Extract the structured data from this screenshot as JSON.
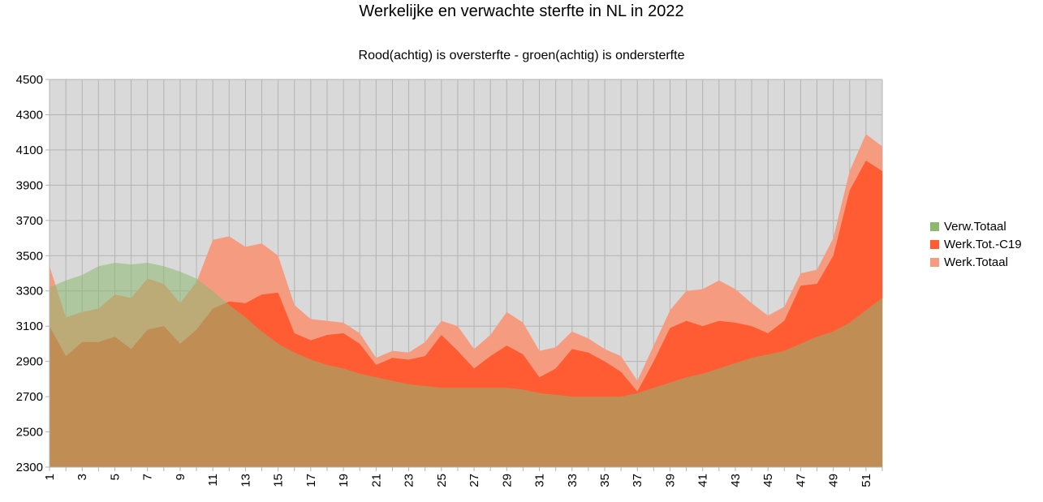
{
  "chart_data": {
    "type": "area",
    "title": "Werkelijke en verwachte sterfte in NL in 2022",
    "subtitle": "Rood(achtig) is oversterfte - groen(achtig) is ondersterfte",
    "xlabel": "",
    "ylabel": "",
    "ylim": [
      2300,
      4500
    ],
    "yticks": [
      2300,
      2500,
      2700,
      2900,
      3100,
      3300,
      3500,
      3700,
      3900,
      4100,
      4300,
      4500
    ],
    "x": [
      1,
      2,
      3,
      4,
      5,
      6,
      7,
      8,
      9,
      10,
      11,
      12,
      13,
      14,
      15,
      16,
      17,
      18,
      19,
      20,
      21,
      22,
      23,
      24,
      25,
      26,
      27,
      28,
      29,
      30,
      31,
      32,
      33,
      34,
      35,
      36,
      37,
      38,
      39,
      40,
      41,
      42,
      43,
      44,
      45,
      46,
      47,
      48,
      49,
      50,
      51,
      52
    ],
    "xticks": [
      1,
      3,
      5,
      7,
      9,
      11,
      13,
      15,
      17,
      19,
      21,
      23,
      25,
      27,
      29,
      31,
      33,
      35,
      37,
      39,
      41,
      43,
      45,
      47,
      49,
      51
    ],
    "grid": true,
    "legend_position": "right",
    "series": [
      {
        "name": "Verw.Totaal",
        "color": "#8db870",
        "values": [
          3320,
          3360,
          3390,
          3440,
          3460,
          3450,
          3460,
          3440,
          3410,
          3370,
          3300,
          3220,
          3150,
          3070,
          3000,
          2950,
          2910,
          2880,
          2860,
          2830,
          2810,
          2790,
          2770,
          2760,
          2750,
          2750,
          2750,
          2750,
          2750,
          2740,
          2720,
          2710,
          2700,
          2700,
          2700,
          2700,
          2720,
          2750,
          2780,
          2810,
          2830,
          2860,
          2890,
          2920,
          2940,
          2960,
          3000,
          3040,
          3070,
          3120,
          3190,
          3260
        ]
      },
      {
        "name": "Werk.Tot.-C19",
        "color": "#ff5c33",
        "values": [
          3100,
          2930,
          3010,
          3010,
          3040,
          2970,
          3080,
          3100,
          3000,
          3080,
          3200,
          3240,
          3230,
          3280,
          3290,
          3060,
          3020,
          3050,
          3060,
          3000,
          2880,
          2920,
          2910,
          2930,
          3050,
          2960,
          2860,
          2930,
          2990,
          2940,
          2810,
          2860,
          2970,
          2950,
          2900,
          2840,
          2730,
          2900,
          3090,
          3130,
          3100,
          3130,
          3120,
          3100,
          3060,
          3130,
          3330,
          3340,
          3500,
          3870,
          4040,
          3980
        ]
      },
      {
        "name": "Werk.Totaal",
        "color": "#f59c80",
        "values": [
          3440,
          3150,
          3180,
          3200,
          3280,
          3260,
          3370,
          3340,
          3230,
          3350,
          3590,
          3610,
          3550,
          3570,
          3500,
          3220,
          3140,
          3130,
          3120,
          3060,
          2920,
          2960,
          2950,
          3010,
          3130,
          3100,
          2970,
          3050,
          3180,
          3120,
          2960,
          2980,
          3070,
          3030,
          2970,
          2930,
          2790,
          2990,
          3190,
          3300,
          3310,
          3360,
          3310,
          3230,
          3160,
          3210,
          3400,
          3420,
          3600,
          3980,
          4190,
          4120
        ]
      }
    ]
  }
}
